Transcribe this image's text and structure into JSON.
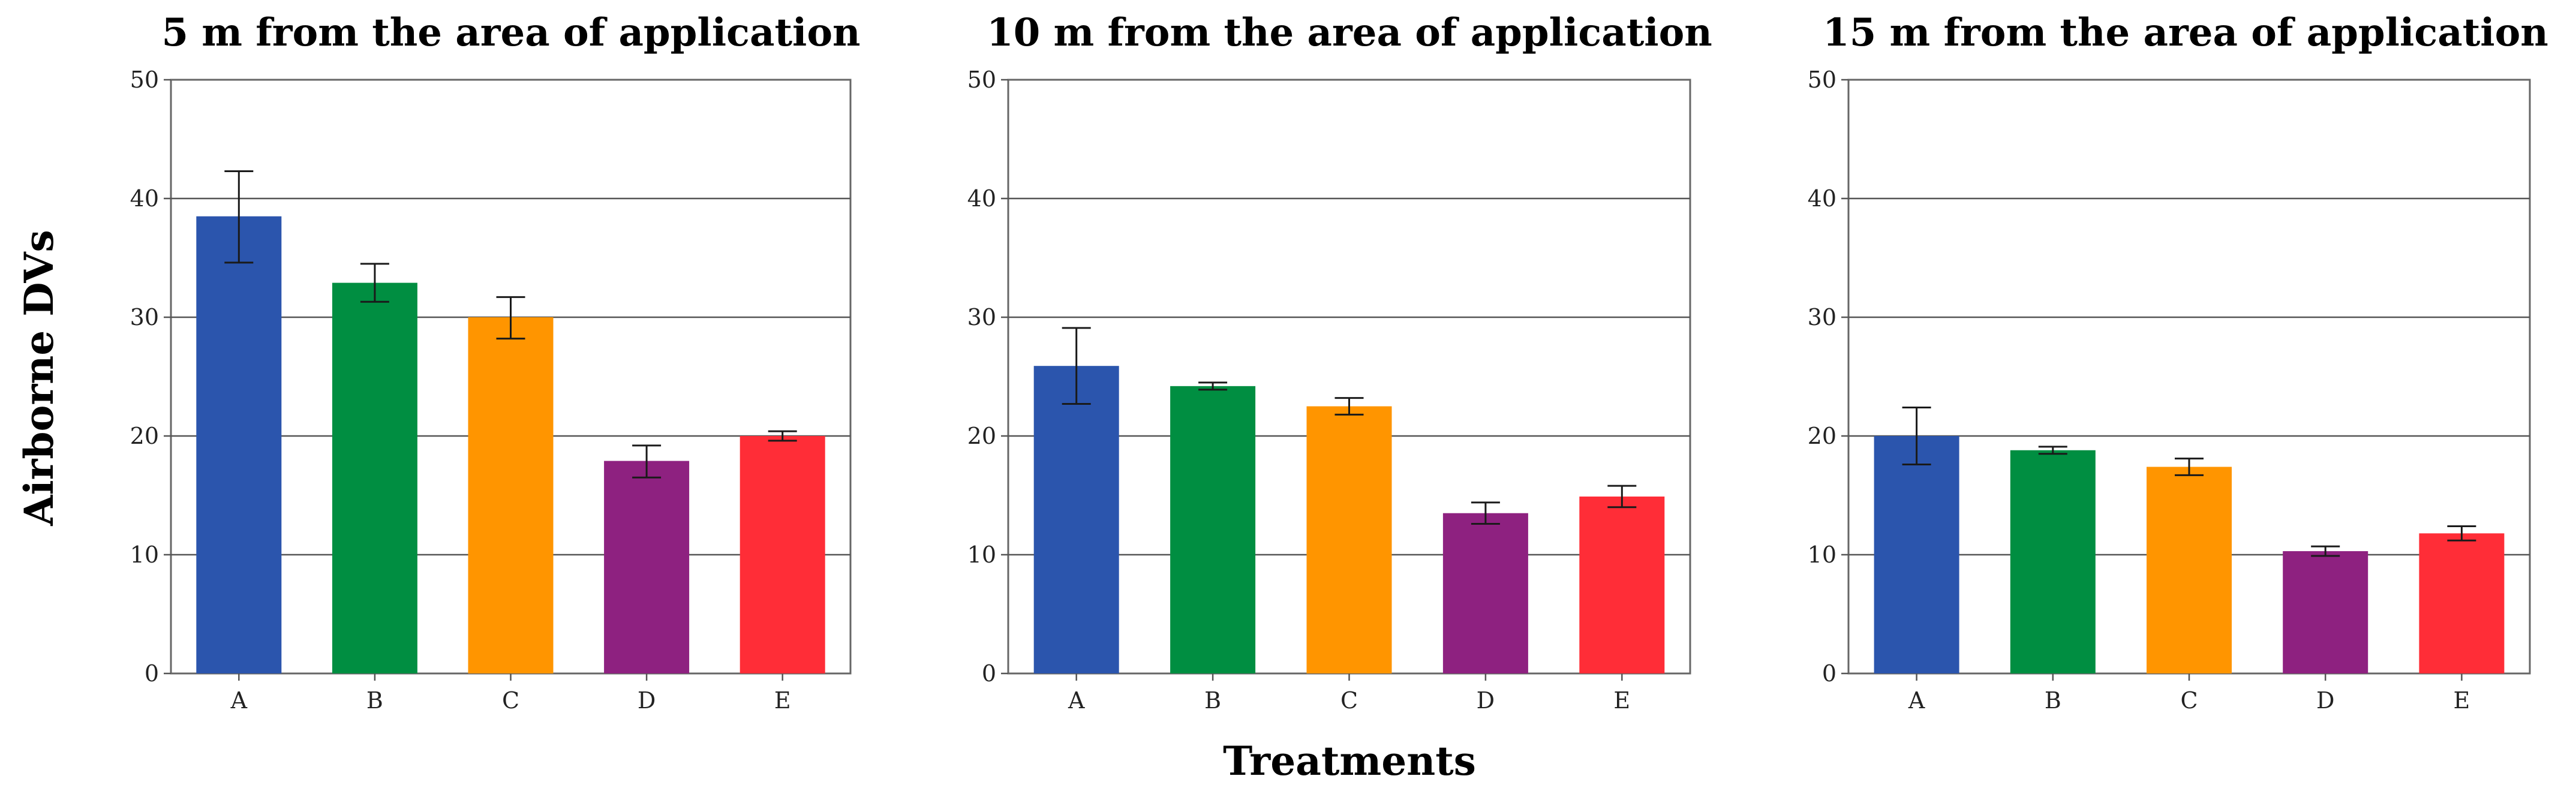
{
  "figure": {
    "ylabel": "Airborne DVs",
    "xlabel": "Treatments"
  },
  "colors": {
    "A": "#2B55AD",
    "B": "#008E41",
    "C": "#FF9500",
    "D": "#8E2180",
    "E": "#FF2D37"
  },
  "chart_data": [
    {
      "type": "bar",
      "title": "5 m from the area of application",
      "categories": [
        "A",
        "B",
        "C",
        "D",
        "E"
      ],
      "values": [
        38.5,
        32.9,
        30.0,
        17.9,
        20.0
      ],
      "error_low": [
        34.6,
        31.3,
        28.2,
        16.5,
        19.6
      ],
      "error_high": [
        42.3,
        34.5,
        31.7,
        19.2,
        20.4
      ],
      "ylim": [
        0,
        50
      ],
      "yticks": [
        0,
        10,
        20,
        30,
        40,
        50
      ],
      "grid": true
    },
    {
      "type": "bar",
      "title": "10 m from the area of application",
      "categories": [
        "A",
        "B",
        "C",
        "D",
        "E"
      ],
      "values": [
        25.9,
        24.2,
        22.5,
        13.5,
        14.9
      ],
      "error_low": [
        22.7,
        23.9,
        21.8,
        12.6,
        14.0
      ],
      "error_high": [
        29.1,
        24.5,
        23.2,
        14.4,
        15.8
      ],
      "ylim": [
        0,
        50
      ],
      "yticks": [
        0,
        10,
        20,
        30,
        40,
        50
      ],
      "grid": true
    },
    {
      "type": "bar",
      "title": "15 m from the area of application",
      "categories": [
        "A",
        "B",
        "C",
        "D",
        "E"
      ],
      "values": [
        20.0,
        18.8,
        17.4,
        10.3,
        11.8
      ],
      "error_low": [
        17.6,
        18.5,
        16.7,
        9.9,
        11.2
      ],
      "error_high": [
        22.4,
        19.1,
        18.1,
        10.7,
        12.4
      ],
      "ylim": [
        0,
        50
      ],
      "yticks": [
        0,
        10,
        20,
        30,
        40,
        50
      ],
      "grid": true
    }
  ]
}
